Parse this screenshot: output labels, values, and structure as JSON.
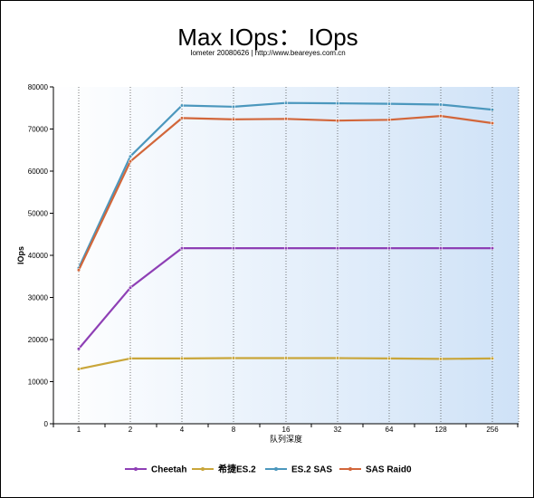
{
  "chart_data": {
    "type": "line",
    "title": "Max IOps： IOps",
    "subtitle": "Iometer 20080626 | http://www.beareyes.com.cn",
    "xlabel": "队列深度",
    "ylabel": "IOps",
    "categories": [
      "1",
      "2",
      "4",
      "8",
      "16",
      "32",
      "64",
      "128",
      "256"
    ],
    "ylim": [
      0,
      80000
    ],
    "yticks": [
      0,
      10000,
      20000,
      30000,
      40000,
      50000,
      60000,
      70000,
      80000
    ],
    "grid": "vertical dotted",
    "legend_position": "bottom",
    "series": [
      {
        "name": "Cheetah",
        "color": "#8e3fb5",
        "values": [
          17800,
          32300,
          41700,
          41700,
          41700,
          41700,
          41700,
          41700,
          41700
        ]
      },
      {
        "name": "希捷ES.2",
        "color": "#c9a63a",
        "values": [
          13000,
          15500,
          15500,
          15600,
          15600,
          15600,
          15500,
          15400,
          15500
        ]
      },
      {
        "name": "ES.2 SAS",
        "color": "#4b97bd",
        "values": [
          37000,
          63500,
          75600,
          75300,
          76200,
          76100,
          76000,
          75800,
          74600
        ]
      },
      {
        "name": "SAS Raid0",
        "color": "#d2663a",
        "values": [
          36500,
          62300,
          72600,
          72300,
          72400,
          72000,
          72200,
          73100,
          71400
        ]
      }
    ]
  }
}
